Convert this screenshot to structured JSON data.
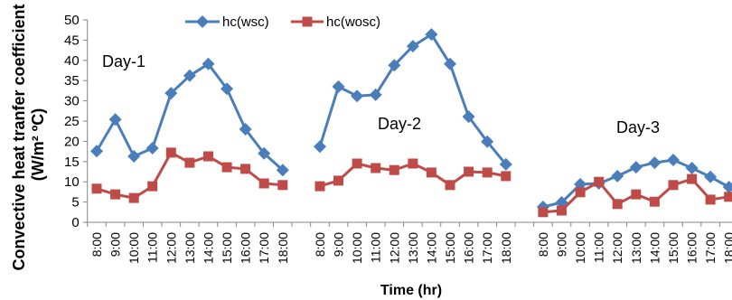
{
  "chart_data": {
    "type": "line",
    "xlabel": "Time (hr)",
    "ylabel": [
      "Convective heat tranfer coefficient",
      "(W/m² ºC)"
    ],
    "ylim": [
      0,
      50
    ],
    "yticks": [
      0,
      5,
      10,
      15,
      20,
      25,
      30,
      35,
      40,
      45,
      50
    ],
    "categories": [
      "8:00",
      "9:00",
      "10:00",
      "11:00",
      "12:00",
      "13:00",
      "14:00",
      "15:00",
      "16:00",
      "17:00",
      "18:00",
      "",
      "8:00",
      "9:00",
      "10:00",
      "11:00",
      "12:00",
      "13:00",
      "14:00",
      "15:00",
      "16:00",
      "17:00",
      "18:00",
      "",
      "8:00",
      "9:00",
      "10:00",
      "11:00",
      "12:00",
      "13:00",
      "14:00",
      "15:00",
      "16:00",
      "17:00",
      "18:00"
    ],
    "series": [
      {
        "name": "hc(wsc)",
        "color": "#4A7EBB",
        "marker": "diamond",
        "values": [
          17.6,
          25.4,
          16.3,
          18.3,
          31.9,
          36.2,
          39.1,
          33.0,
          23.0,
          17.0,
          12.9,
          null,
          18.7,
          33.5,
          31.2,
          31.5,
          38.8,
          43.5,
          46.4,
          39.1,
          26.1,
          19.9,
          14.3,
          null,
          3.8,
          4.9,
          9.4,
          9.6,
          11.4,
          13.6,
          14.7,
          15.4,
          13.4,
          11.2,
          8.7
        ]
      },
      {
        "name": "hc(wosc)",
        "color": "#BE4B48",
        "marker": "square",
        "values": [
          8.3,
          6.9,
          6.0,
          8.9,
          17.2,
          14.7,
          16.3,
          13.6,
          13.2,
          9.6,
          9.2,
          null,
          8.9,
          10.3,
          14.5,
          13.4,
          12.9,
          14.5,
          12.3,
          9.2,
          12.5,
          12.3,
          11.4,
          null,
          2.5,
          2.9,
          7.4,
          10.0,
          4.5,
          6.9,
          5.1,
          9.2,
          10.7,
          5.6,
          6.3
        ]
      }
    ],
    "annotations": [
      "Day-1",
      "Day-2",
      "Day-3"
    ],
    "legend": "top",
    "grid": false
  }
}
